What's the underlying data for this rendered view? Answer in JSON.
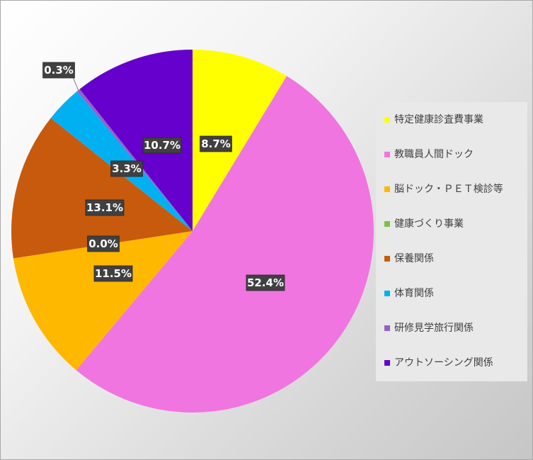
{
  "chart_data": {
    "type": "pie",
    "categories": [
      "特定健康診査費事業",
      "教職員人間ドック",
      "脳ドック・ＰＥＴ検診等",
      "健康づくり事業",
      "保養関係",
      "体育関係",
      "研修見学旅行関係",
      "アウトソーシング関係"
    ],
    "values": [
      8.7,
      52.4,
      11.5,
      0.0,
      13.1,
      3.3,
      0.3,
      10.7
    ],
    "data_labels": [
      "8.7%",
      "52.4%",
      "11.5%",
      "0.0%",
      "13.1%",
      "3.3%",
      "0.3%",
      "10.7%"
    ],
    "colors": [
      "#ffff00",
      "#f075e0",
      "#ffb800",
      "#7cc243",
      "#c85a0d",
      "#00b0f0",
      "#9560cb",
      "#6600cc"
    ],
    "start_angle_deg": 0,
    "direction": "clockwise",
    "legend_position": "right",
    "title": ""
  }
}
